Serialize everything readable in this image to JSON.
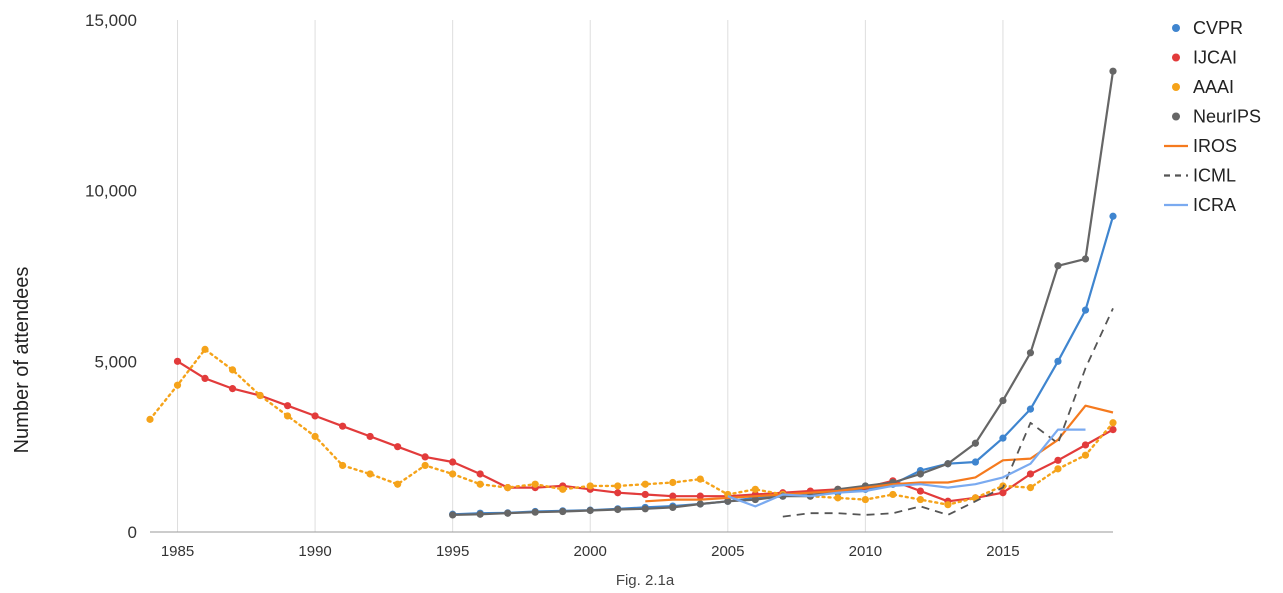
{
  "chart_data": {
    "type": "line",
    "title": "",
    "caption": "Fig. 2.1a",
    "xlabel": "",
    "ylabel": "Number of attendees",
    "xlim": [
      1984,
      2019
    ],
    "ylim": [
      0,
      15000
    ],
    "xticks": [
      "1985",
      "1990",
      "1995",
      "2000",
      "2005",
      "2010",
      "2015"
    ],
    "xtick_values": [
      1985,
      1990,
      1995,
      2000,
      2005,
      2010,
      2015
    ],
    "yticks": [
      "0",
      "5,000",
      "10,000",
      "15,000"
    ],
    "ytick_values": [
      0,
      5000,
      10000,
      15000
    ],
    "grid": "vertical",
    "legend_position": "right",
    "series": [
      {
        "name": "CVPR",
        "color": "#3f85cf",
        "style": "solid-markers",
        "points": [
          [
            1995,
            520
          ],
          [
            1996,
            550
          ],
          [
            1997,
            560
          ],
          [
            1998,
            600
          ],
          [
            1999,
            620
          ],
          [
            2000,
            640
          ],
          [
            2001,
            680
          ],
          [
            2002,
            720
          ],
          [
            2003,
            760
          ],
          [
            2004,
            820
          ],
          [
            2005,
            900
          ],
          [
            2006,
            1000
          ],
          [
            2007,
            1050
          ],
          [
            2008,
            1100
          ],
          [
            2009,
            1150
          ],
          [
            2010,
            1250
          ],
          [
            2011,
            1400
          ],
          [
            2012,
            1800
          ],
          [
            2013,
            2000
          ],
          [
            2014,
            2050
          ],
          [
            2015,
            2750
          ],
          [
            2016,
            3600
          ],
          [
            2017,
            5000
          ],
          [
            2018,
            6500
          ],
          [
            2019,
            9250
          ]
        ]
      },
      {
        "name": "IJCAI",
        "color": "#e23b3b",
        "style": "solid-markers",
        "points": [
          [
            1985,
            5000
          ],
          [
            1986,
            4500
          ],
          [
            1987,
            4200
          ],
          [
            1988,
            4000
          ],
          [
            1989,
            3700
          ],
          [
            1990,
            3400
          ],
          [
            1991,
            3100
          ],
          [
            1992,
            2800
          ],
          [
            1993,
            2500
          ],
          [
            1994,
            2200
          ],
          [
            1995,
            2050
          ],
          [
            1996,
            1700
          ],
          [
            1997,
            1300
          ],
          [
            1998,
            1300
          ],
          [
            1999,
            1350
          ],
          [
            2000,
            1250
          ],
          [
            2001,
            1150
          ],
          [
            2002,
            1100
          ],
          [
            2003,
            1050
          ],
          [
            2004,
            1050
          ],
          [
            2005,
            1050
          ],
          [
            2006,
            1100
          ],
          [
            2007,
            1150
          ],
          [
            2008,
            1200
          ],
          [
            2009,
            1250
          ],
          [
            2010,
            1300
          ],
          [
            2011,
            1500
          ],
          [
            2012,
            1200
          ],
          [
            2013,
            900
          ],
          [
            2014,
            1000
          ],
          [
            2015,
            1150
          ],
          [
            2016,
            1700
          ],
          [
            2017,
            2100
          ],
          [
            2018,
            2550
          ],
          [
            2019,
            3000
          ]
        ]
      },
      {
        "name": "AAAI",
        "color": "#f5a31a",
        "style": "dotted-markers",
        "points": [
          [
            1984,
            3300
          ],
          [
            1985,
            4300
          ],
          [
            1986,
            5350
          ],
          [
            1987,
            4750
          ],
          [
            1988,
            4000
          ],
          [
            1989,
            3400
          ],
          [
            1990,
            2800
          ],
          [
            1991,
            1950
          ],
          [
            1992,
            1700
          ],
          [
            1993,
            1400
          ],
          [
            1994,
            1950
          ],
          [
            1995,
            1700
          ],
          [
            1996,
            1400
          ],
          [
            1997,
            1300
          ],
          [
            1998,
            1400
          ],
          [
            1999,
            1250
          ],
          [
            2000,
            1350
          ],
          [
            2001,
            1350
          ],
          [
            2002,
            1400
          ],
          [
            2003,
            1450
          ],
          [
            2004,
            1550
          ],
          [
            2005,
            1100
          ],
          [
            2006,
            1250
          ],
          [
            2007,
            1100
          ],
          [
            2008,
            1050
          ],
          [
            2009,
            1000
          ],
          [
            2010,
            950
          ],
          [
            2011,
            1100
          ],
          [
            2012,
            950
          ],
          [
            2013,
            800
          ],
          [
            2014,
            1000
          ],
          [
            2015,
            1350
          ],
          [
            2016,
            1300
          ],
          [
            2017,
            1850
          ],
          [
            2018,
            2250
          ],
          [
            2019,
            3200
          ]
        ]
      },
      {
        "name": "NeurIPS",
        "color": "#666666",
        "style": "solid-markers",
        "points": [
          [
            1995,
            500
          ],
          [
            1996,
            520
          ],
          [
            1997,
            550
          ],
          [
            1998,
            580
          ],
          [
            1999,
            600
          ],
          [
            2000,
            630
          ],
          [
            2001,
            660
          ],
          [
            2002,
            680
          ],
          [
            2003,
            720
          ],
          [
            2004,
            820
          ],
          [
            2005,
            900
          ],
          [
            2006,
            950
          ],
          [
            2007,
            1050
          ],
          [
            2008,
            1050
          ],
          [
            2009,
            1250
          ],
          [
            2010,
            1350
          ],
          [
            2011,
            1450
          ],
          [
            2012,
            1700
          ],
          [
            2013,
            2000
          ],
          [
            2014,
            2600
          ],
          [
            2015,
            3850
          ],
          [
            2016,
            5250
          ],
          [
            2017,
            7800
          ],
          [
            2018,
            8000
          ],
          [
            2019,
            13500
          ]
        ]
      },
      {
        "name": "IROS",
        "color": "#f57a1e",
        "style": "solid",
        "points": [
          [
            2002,
            900
          ],
          [
            2003,
            950
          ],
          [
            2004,
            950
          ],
          [
            2005,
            1000
          ],
          [
            2006,
            1050
          ],
          [
            2007,
            1100
          ],
          [
            2008,
            1150
          ],
          [
            2009,
            1200
          ],
          [
            2010,
            1300
          ],
          [
            2011,
            1400
          ],
          [
            2012,
            1450
          ],
          [
            2013,
            1450
          ],
          [
            2014,
            1600
          ],
          [
            2015,
            2100
          ],
          [
            2016,
            2150
          ],
          [
            2017,
            2700
          ],
          [
            2018,
            3700
          ],
          [
            2019,
            3500
          ]
        ]
      },
      {
        "name": "ICML",
        "color": "#555555",
        "style": "dashed",
        "points": [
          [
            2007,
            450
          ],
          [
            2008,
            550
          ],
          [
            2009,
            550
          ],
          [
            2010,
            500
          ],
          [
            2011,
            550
          ],
          [
            2012,
            750
          ],
          [
            2013,
            500
          ],
          [
            2014,
            900
          ],
          [
            2015,
            1300
          ],
          [
            2016,
            3200
          ],
          [
            2017,
            2600
          ],
          [
            2018,
            4800
          ],
          [
            2019,
            6550
          ]
        ]
      },
      {
        "name": "ICRA",
        "color": "#7aaaf0",
        "style": "solid",
        "points": [
          [
            2005,
            1050
          ],
          [
            2006,
            750
          ],
          [
            2007,
            1100
          ],
          [
            2008,
            1050
          ],
          [
            2009,
            1150
          ],
          [
            2010,
            1200
          ],
          [
            2011,
            1350
          ],
          [
            2012,
            1400
          ],
          [
            2013,
            1300
          ],
          [
            2014,
            1400
          ],
          [
            2015,
            1600
          ],
          [
            2016,
            2000
          ],
          [
            2017,
            3000
          ],
          [
            2018,
            3000
          ]
        ]
      }
    ]
  }
}
